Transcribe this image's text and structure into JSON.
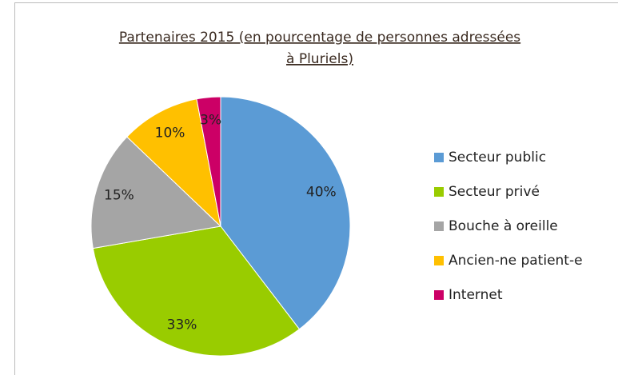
{
  "chart_data": {
    "type": "pie",
    "title": [
      "Partenaires 2015 (en pourcentage de personnes adressées",
      "à Pluriels)"
    ],
    "categories": [
      "Secteur public",
      "Secteur privé",
      "Bouche à oreille",
      "Ancien-ne patient-e",
      "Internet"
    ],
    "values": [
      40,
      33,
      15,
      10,
      3
    ],
    "value_labels": [
      "40%",
      "33%",
      "15%",
      "10%",
      "3%"
    ],
    "colors": [
      "#5b9bd5",
      "#99cc00",
      "#a5a5a5",
      "#ffc000",
      "#cc0066"
    ],
    "legend": "right"
  }
}
